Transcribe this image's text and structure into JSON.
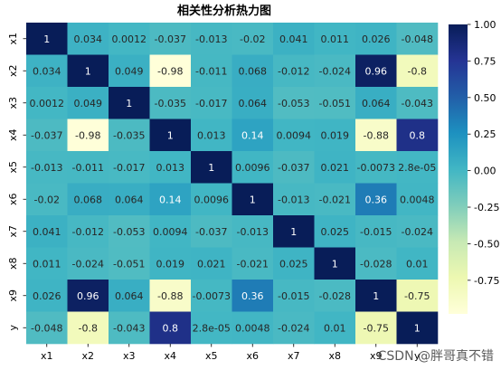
{
  "chart_data": {
    "type": "heatmap",
    "title": "相关性分析热力图",
    "xlabel": "",
    "ylabel": "",
    "labels": [
      "x1",
      "x2",
      "x3",
      "x4",
      "x5",
      "x6",
      "x7",
      "x8",
      "x9",
      "y"
    ],
    "matrix": [
      [
        "1",
        "0.034",
        "0.0012",
        "-0.037",
        "-0.013",
        "-0.02",
        "0.041",
        "0.011",
        "0.026",
        "-0.048"
      ],
      [
        "0.034",
        "1",
        "0.049",
        "-0.98",
        "-0.011",
        "0.068",
        "-0.012",
        "-0.024",
        "0.96",
        "-0.8"
      ],
      [
        "0.0012",
        "0.049",
        "1",
        "-0.035",
        "-0.017",
        "0.064",
        "-0.053",
        "-0.051",
        "0.064",
        "-0.043"
      ],
      [
        "-0.037",
        "-0.98",
        "-0.035",
        "1",
        "0.013",
        "0.14",
        "0.0094",
        "0.019",
        "-0.88",
        "0.8"
      ],
      [
        "-0.013",
        "-0.011",
        "-0.017",
        "0.013",
        "1",
        "0.0096",
        "-0.037",
        "0.021",
        "-0.0073",
        "2.8e-05"
      ],
      [
        "-0.02",
        "0.068",
        "0.064",
        "0.14",
        "0.0096",
        "1",
        "-0.013",
        "-0.021",
        "0.36",
        "0.0048"
      ],
      [
        "0.041",
        "-0.012",
        "-0.053",
        "0.0094",
        "-0.037",
        "-0.013",
        "1",
        "0.025",
        "-0.015",
        "-0.024"
      ],
      [
        "0.011",
        "-0.024",
        "-0.051",
        "0.019",
        "0.021",
        "-0.021",
        "0.025",
        "1",
        "-0.028",
        "0.01"
      ],
      [
        "0.026",
        "0.96",
        "0.064",
        "-0.88",
        "-0.0073",
        "0.36",
        "-0.015",
        "-0.028",
        "1",
        "-0.75"
      ],
      [
        "-0.048",
        "-0.8",
        "-0.043",
        "0.8",
        "2.8e-05",
        "0.0048",
        "-0.024",
        "0.01",
        "-0.75",
        "1"
      ]
    ],
    "colormap": "YlGnBu",
    "vmin": -0.98,
    "vmax": 1,
    "colorbar_ticks": [
      "1.00",
      "0.75",
      "0.50",
      "0.25",
      "0.00",
      "-0.25",
      "-0.50",
      "-0.75"
    ],
    "colorbar_tick_values": [
      1,
      0.75,
      0.5,
      0.25,
      0,
      -0.25,
      -0.5,
      -0.75
    ],
    "grid": false,
    "legend": "right colorbar"
  },
  "watermark": "CSDN @胖哥真不错"
}
